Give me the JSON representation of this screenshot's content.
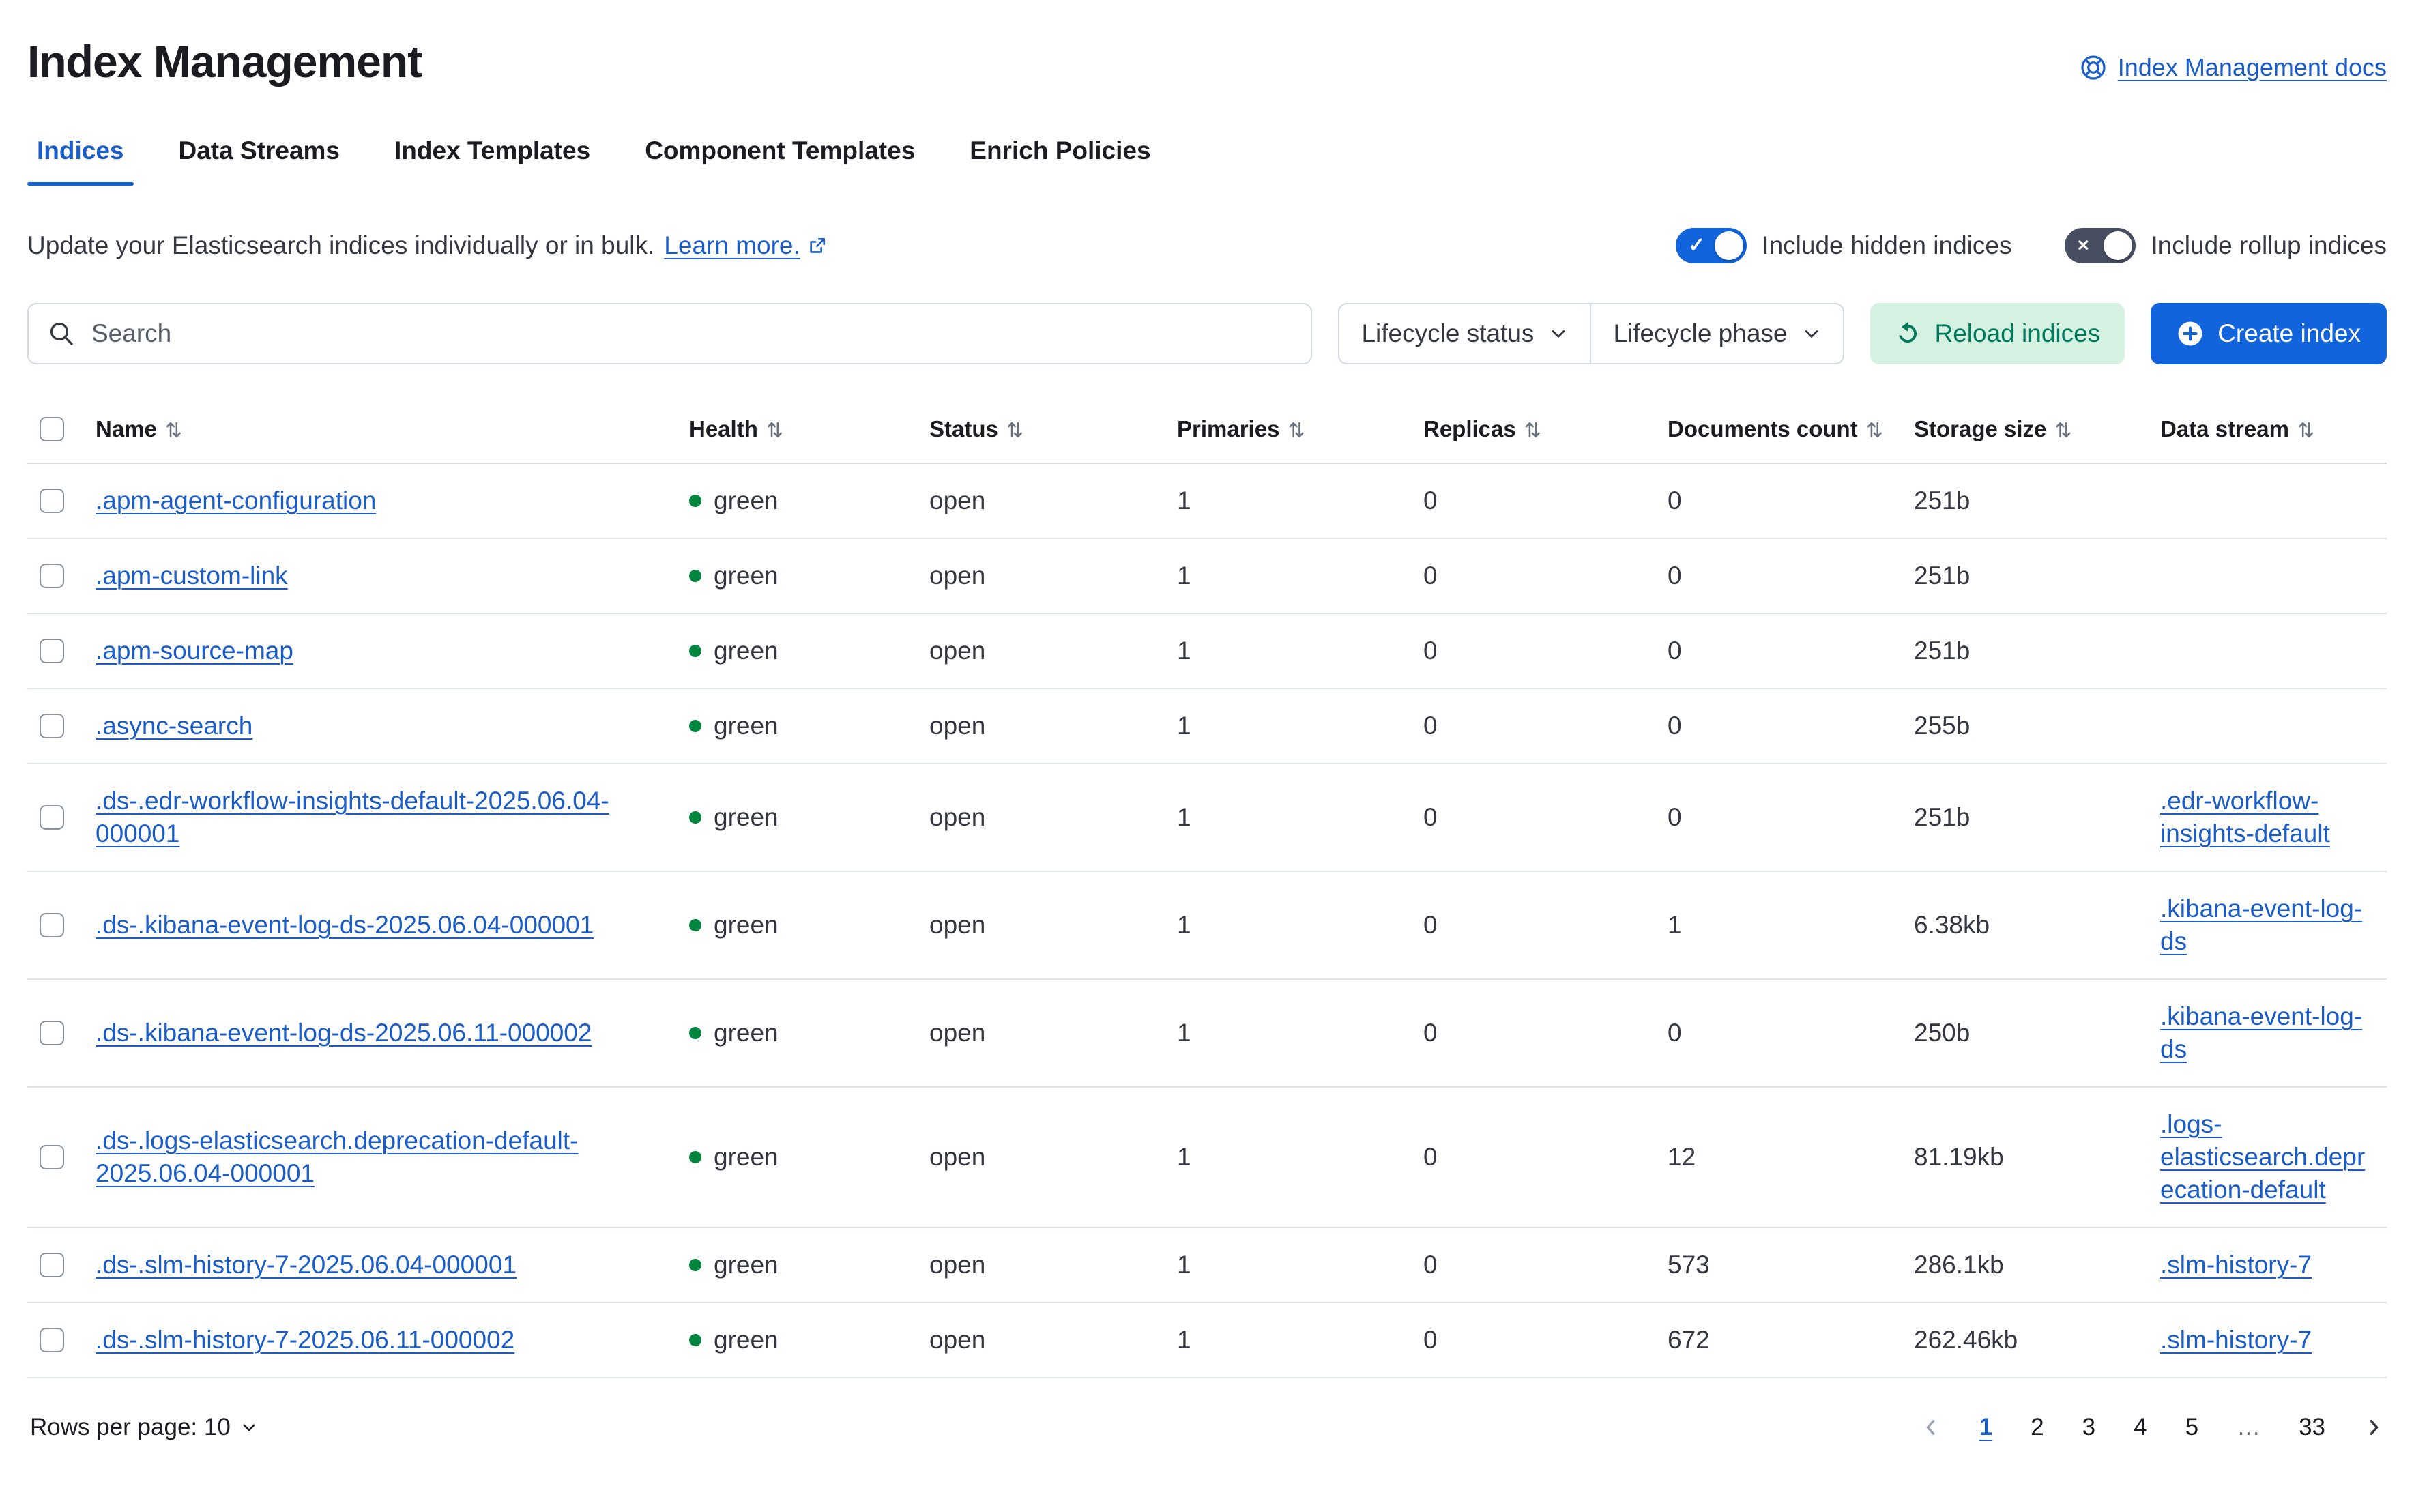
{
  "page": {
    "title": "Index Management",
    "docs_link": "Index Management docs"
  },
  "tabs": [
    {
      "label": "Indices",
      "active": true
    },
    {
      "label": "Data Streams",
      "active": false
    },
    {
      "label": "Index Templates",
      "active": false
    },
    {
      "label": "Component Templates",
      "active": false
    },
    {
      "label": "Enrich Policies",
      "active": false
    }
  ],
  "intro": {
    "text": "Update your Elasticsearch indices individually or in bulk.",
    "link_label": "Learn more."
  },
  "toggles": [
    {
      "label": "Include hidden indices",
      "on": true
    },
    {
      "label": "Include rollup indices",
      "on": false
    }
  ],
  "toolbar": {
    "search_placeholder": "Search",
    "filters": [
      "Lifecycle status",
      "Lifecycle phase"
    ],
    "reload_label": "Reload indices",
    "create_label": "Create index"
  },
  "table": {
    "columns": [
      "Name",
      "Health",
      "Status",
      "Primaries",
      "Replicas",
      "Documents count",
      "Storage size",
      "Data stream"
    ],
    "sort_glyph": "⇅",
    "rows": [
      {
        "name": ".apm-agent-configuration",
        "health": "green",
        "status": "open",
        "primaries": "1",
        "replicas": "0",
        "documents": "0",
        "storage": "251b",
        "data_stream": ""
      },
      {
        "name": ".apm-custom-link",
        "health": "green",
        "status": "open",
        "primaries": "1",
        "replicas": "0",
        "documents": "0",
        "storage": "251b",
        "data_stream": ""
      },
      {
        "name": ".apm-source-map",
        "health": "green",
        "status": "open",
        "primaries": "1",
        "replicas": "0",
        "documents": "0",
        "storage": "251b",
        "data_stream": ""
      },
      {
        "name": ".async-search",
        "health": "green",
        "status": "open",
        "primaries": "1",
        "replicas": "0",
        "documents": "0",
        "storage": "255b",
        "data_stream": ""
      },
      {
        "name": ".ds-.edr-workflow-insights-default-2025.06.04-000001",
        "health": "green",
        "status": "open",
        "primaries": "1",
        "replicas": "0",
        "documents": "0",
        "storage": "251b",
        "data_stream": ".edr-workflow-insights-default"
      },
      {
        "name": ".ds-.kibana-event-log-ds-2025.06.04-000001",
        "health": "green",
        "status": "open",
        "primaries": "1",
        "replicas": "0",
        "documents": "1",
        "storage": "6.38kb",
        "data_stream": ".kibana-event-log-ds"
      },
      {
        "name": ".ds-.kibana-event-log-ds-2025.06.11-000002",
        "health": "green",
        "status": "open",
        "primaries": "1",
        "replicas": "0",
        "documents": "0",
        "storage": "250b",
        "data_stream": ".kibana-event-log-ds"
      },
      {
        "name": ".ds-.logs-elasticsearch.deprecation-default-2025.06.04-000001",
        "health": "green",
        "status": "open",
        "primaries": "1",
        "replicas": "0",
        "documents": "12",
        "storage": "81.19kb",
        "data_stream": ".logs-elasticsearch.deprecation-default"
      },
      {
        "name": ".ds-.slm-history-7-2025.06.04-000001",
        "health": "green",
        "status": "open",
        "primaries": "1",
        "replicas": "0",
        "documents": "573",
        "storage": "286.1kb",
        "data_stream": ".slm-history-7"
      },
      {
        "name": ".ds-.slm-history-7-2025.06.11-000002",
        "health": "green",
        "status": "open",
        "primaries": "1",
        "replicas": "0",
        "documents": "672",
        "storage": "262.46kb",
        "data_stream": ".slm-history-7"
      }
    ]
  },
  "footer": {
    "rows_per_page_label": "Rows per page: 10",
    "pages": [
      "1",
      "2",
      "3",
      "4",
      "5",
      "…",
      "33"
    ],
    "active_page": "1"
  },
  "icons": {
    "docs": "help-ring-icon",
    "external": "external-link-icon",
    "search": "magnifier-icon",
    "reload": "refresh-icon",
    "create": "plus-in-circle-icon",
    "sort": "sortable-arrows-icon",
    "check_glyph": "✓",
    "cross_glyph": "×"
  },
  "colors": {
    "accent": "#1264dc",
    "link": "#1a5dc8",
    "success_bg": "#d5f1e2",
    "success_text": "#00795c",
    "health_green": "#00853e",
    "toggle_off": "#474e61"
  }
}
